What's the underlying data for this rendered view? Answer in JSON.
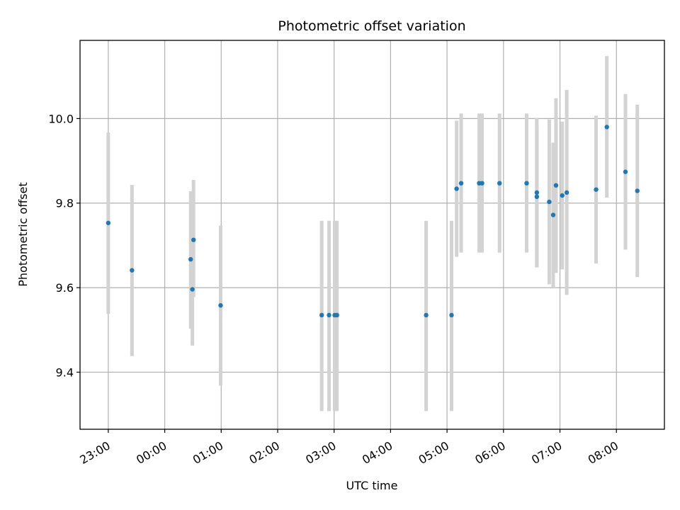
{
  "chart_data": {
    "type": "scatter",
    "title": "Photometric offset variation",
    "xlabel": "UTC time",
    "ylabel": "Photometric offset",
    "x_unit": "UTC time of day (hours past midnight; negative values are before 00:00)",
    "xlim": [
      -1.5,
      8.85
    ],
    "ylim": [
      9.265,
      10.185
    ],
    "x_ticks": [
      {
        "value": -1.0,
        "label": "23:00"
      },
      {
        "value": 0.0,
        "label": "00:00"
      },
      {
        "value": 1.0,
        "label": "01:00"
      },
      {
        "value": 2.0,
        "label": "02:00"
      },
      {
        "value": 3.0,
        "label": "03:00"
      },
      {
        "value": 4.0,
        "label": "04:00"
      },
      {
        "value": 5.0,
        "label": "05:00"
      },
      {
        "value": 6.0,
        "label": "06:00"
      },
      {
        "value": 7.0,
        "label": "07:00"
      },
      {
        "value": 8.0,
        "label": "08:00"
      }
    ],
    "y_ticks": [
      {
        "value": 9.4,
        "label": "9.4"
      },
      {
        "value": 9.6,
        "label": "9.6"
      },
      {
        "value": 9.8,
        "label": "9.8"
      },
      {
        "value": 10.0,
        "label": "10.0"
      }
    ],
    "grid": true,
    "series": [
      {
        "marker_color": "#1f77b4",
        "errorbar_color": "#d3d3d3",
        "points": [
          {
            "x": -1.0,
            "y": 9.753,
            "lo": 9.538,
            "hi": 9.967
          },
          {
            "x": -0.58,
            "y": 9.641,
            "lo": 9.438,
            "hi": 9.843
          },
          {
            "x": 0.46,
            "y": 9.667,
            "lo": 9.503,
            "hi": 9.828
          },
          {
            "x": 0.49,
            "y": 9.596,
            "lo": 9.463,
            "hi": 9.813
          },
          {
            "x": 0.51,
            "y": 9.713,
            "lo": 9.578,
            "hi": 9.855
          },
          {
            "x": 0.99,
            "y": 9.558,
            "lo": 9.368,
            "hi": 9.747
          },
          {
            "x": 2.78,
            "y": 9.535,
            "lo": 9.308,
            "hi": 9.758
          },
          {
            "x": 2.91,
            "y": 9.535,
            "lo": 9.308,
            "hi": 9.758
          },
          {
            "x": 3.01,
            "y": 9.535,
            "lo": 9.308,
            "hi": 9.758
          },
          {
            "x": 3.05,
            "y": 9.535,
            "lo": 9.308,
            "hi": 9.758
          },
          {
            "x": 4.63,
            "y": 9.535,
            "lo": 9.308,
            "hi": 9.758
          },
          {
            "x": 5.08,
            "y": 9.535,
            "lo": 9.308,
            "hi": 9.758
          },
          {
            "x": 5.17,
            "y": 9.834,
            "lo": 9.673,
            "hi": 9.995
          },
          {
            "x": 5.25,
            "y": 9.847,
            "lo": 9.683,
            "hi": 10.012
          },
          {
            "x": 5.57,
            "y": 9.847,
            "lo": 9.683,
            "hi": 10.012
          },
          {
            "x": 5.62,
            "y": 9.847,
            "lo": 9.683,
            "hi": 10.012
          },
          {
            "x": 5.93,
            "y": 9.847,
            "lo": 9.683,
            "hi": 10.012
          },
          {
            "x": 6.41,
            "y": 9.847,
            "lo": 9.683,
            "hi": 10.012
          },
          {
            "x": 6.59,
            "y": 9.825,
            "lo": 9.648,
            "hi": 10.002
          },
          {
            "x": 6.59,
            "y": 9.815,
            "lo": 9.648,
            "hi": 9.982
          },
          {
            "x": 6.81,
            "y": 9.803,
            "lo": 9.608,
            "hi": 9.998
          },
          {
            "x": 6.88,
            "y": 9.772,
            "lo": 9.6,
            "hi": 9.943
          },
          {
            "x": 6.93,
            "y": 9.842,
            "lo": 9.635,
            "hi": 10.048
          },
          {
            "x": 7.04,
            "y": 9.818,
            "lo": 9.643,
            "hi": 9.993
          },
          {
            "x": 7.12,
            "y": 9.825,
            "lo": 9.583,
            "hi": 10.068
          },
          {
            "x": 7.64,
            "y": 9.832,
            "lo": 9.657,
            "hi": 10.007
          },
          {
            "x": 7.83,
            "y": 9.98,
            "lo": 9.813,
            "hi": 10.148
          },
          {
            "x": 8.16,
            "y": 9.874,
            "lo": 9.69,
            "hi": 10.058
          },
          {
            "x": 8.37,
            "y": 9.829,
            "lo": 9.625,
            "hi": 10.033
          }
        ]
      }
    ]
  }
}
